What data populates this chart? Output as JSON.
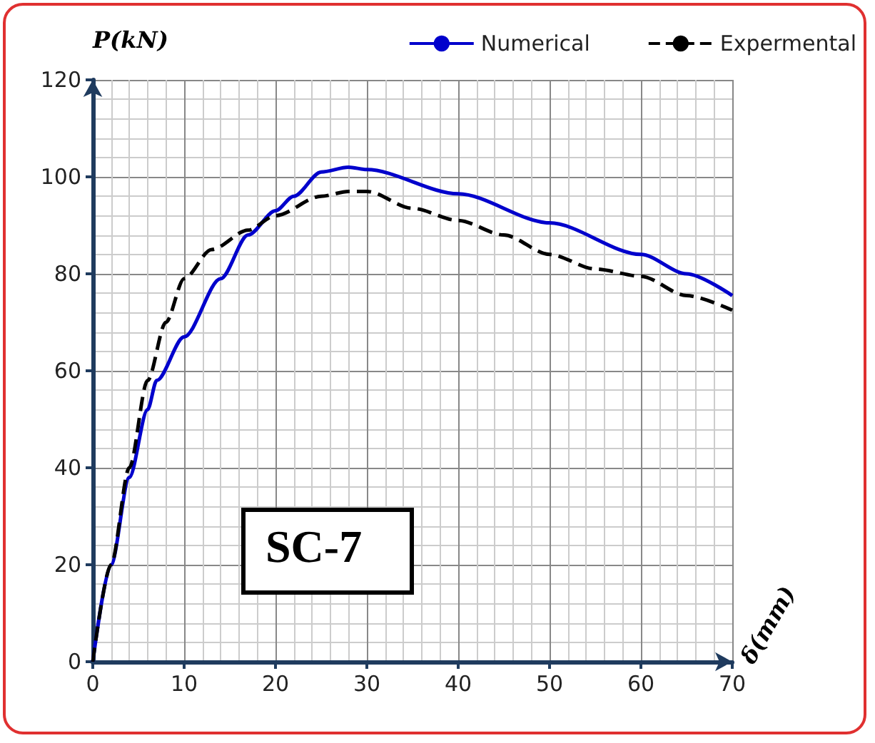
{
  "chart_data": {
    "type": "line",
    "xlabel": "δ(mm)",
    "ylabel": "P(kN)",
    "annotations": [
      "SC-7"
    ],
    "xlim": [
      0,
      70
    ],
    "xticks": [
      0,
      10,
      20,
      30,
      40,
      50,
      60,
      70
    ],
    "ylim": [
      0,
      120
    ],
    "yticks": [
      0,
      20,
      40,
      60,
      80,
      100,
      120
    ],
    "grid": true,
    "legend": "top right",
    "marker": "none",
    "series": [
      {
        "name": "Numerical",
        "color": "#0000cc",
        "line_style": "solid",
        "x": [
          0,
          2,
          4,
          6,
          7,
          10,
          14,
          17,
          20,
          22,
          25,
          28,
          30,
          40,
          50,
          60,
          65,
          70
        ],
        "values": [
          0,
          20,
          38,
          52,
          58,
          67,
          79,
          88,
          93,
          96,
          101,
          102,
          101.5,
          96.5,
          90.5,
          84,
          80,
          75.5
        ]
      },
      {
        "name": "Expermental",
        "color": "#000000",
        "line_style": "dashed",
        "x": [
          0,
          2,
          4,
          6,
          8,
          10,
          13,
          17,
          20,
          25,
          28,
          30,
          35,
          40,
          45,
          50,
          55,
          60,
          65,
          70
        ],
        "values": [
          0,
          20,
          40,
          58,
          70,
          79,
          85,
          89,
          92,
          96,
          97,
          97,
          93.5,
          91,
          88,
          84,
          81,
          79.5,
          75.5,
          72.5
        ]
      }
    ]
  }
}
